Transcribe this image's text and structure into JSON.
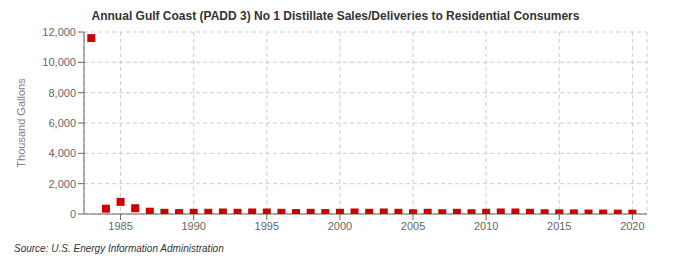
{
  "chart_data": {
    "type": "scatter",
    "title": "Annual Gulf Coast (PADD 3) No 1 Distillate Sales/Deliveries to Residential Consumers",
    "y_label": "Thousand Gallons",
    "source": "Source: U.S. Energy Information Administration",
    "x": [
      1983,
      1984,
      1985,
      1986,
      1987,
      1988,
      1989,
      1990,
      1991,
      1992,
      1993,
      1994,
      1995,
      1996,
      1997,
      1998,
      1999,
      2000,
      2001,
      2002,
      2003,
      2004,
      2005,
      2006,
      2007,
      2008,
      2009,
      2010,
      2011,
      2012,
      2013,
      2014,
      2015,
      2016,
      2017,
      2018,
      2019,
      2020
    ],
    "values": [
      11600,
      350,
      800,
      380,
      150,
      80,
      60,
      80,
      80,
      100,
      80,
      100,
      100,
      80,
      60,
      80,
      60,
      80,
      100,
      80,
      100,
      80,
      50,
      80,
      50,
      80,
      50,
      80,
      100,
      100,
      80,
      50,
      40,
      40,
      30,
      30,
      25,
      20
    ],
    "color": "#cc0000",
    "marker": "square",
    "xlim": [
      1982.5,
      2021
    ],
    "xticks": [
      1985,
      1990,
      1995,
      2000,
      2005,
      2010,
      2015,
      2020
    ],
    "ylim": [
      0,
      12000
    ],
    "yticks": [
      0,
      {
        "value": 2000,
        "label": "2,000"
      },
      {
        "value": 4000,
        "label": "4,000"
      },
      {
        "value": 6000,
        "label": "6,000"
      },
      {
        "value": 8000,
        "label": "8,000"
      },
      {
        "value": 10000,
        "label": "10,000"
      },
      {
        "value": 12000,
        "label": "12,000"
      }
    ],
    "grid": true
  }
}
